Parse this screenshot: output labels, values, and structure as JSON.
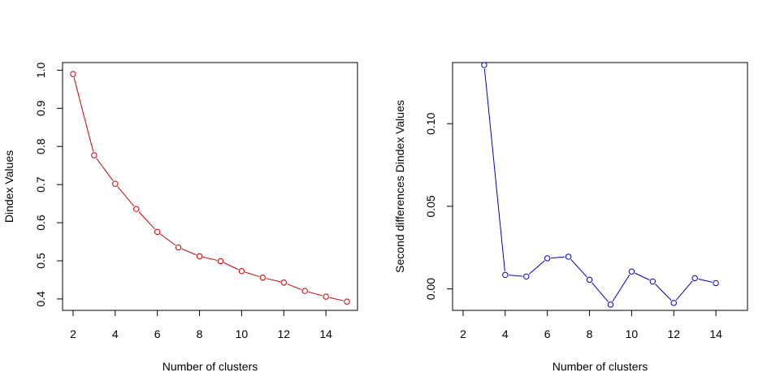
{
  "chart_data": [
    {
      "type": "line",
      "xlabel": "Number of clusters",
      "ylabel": "Dindex Values",
      "xlim": [
        1.5,
        15.5
      ],
      "ylim": [
        0.37,
        1.02
      ],
      "xticks": [
        2,
        4,
        6,
        8,
        10,
        12,
        14
      ],
      "yticks": [
        0.4,
        0.5,
        0.6,
        0.7,
        0.8,
        0.9,
        1.0
      ],
      "ytick_labels": [
        "0.4",
        "0.5",
        "0.6",
        "0.7",
        "0.8",
        "0.9",
        "1.0"
      ],
      "color": "#cc0000",
      "grid": false,
      "x": [
        2,
        3,
        4,
        5,
        6,
        7,
        8,
        9,
        10,
        11,
        12,
        13,
        14,
        15
      ],
      "y": [
        0.99,
        0.777,
        0.702,
        0.636,
        0.576,
        0.535,
        0.512,
        0.499,
        0.473,
        0.456,
        0.443,
        0.421,
        0.406,
        0.393
      ]
    },
    {
      "type": "line",
      "xlabel": "Number of clusters",
      "ylabel": "Second differences Dindex Values",
      "xlim": [
        1.5,
        15.5
      ],
      "ylim": [
        -0.013,
        0.137
      ],
      "xticks": [
        2,
        4,
        6,
        8,
        10,
        12,
        14
      ],
      "yticks": [
        0.0,
        0.05,
        0.1
      ],
      "ytick_labels": [
        "0.00",
        "0.05",
        "0.10"
      ],
      "color": "#0000cc",
      "grid": false,
      "x": [
        3,
        4,
        5,
        6,
        7,
        8,
        9,
        10,
        11,
        12,
        13,
        14
      ],
      "y": [
        0.1355,
        0.0085,
        0.0075,
        0.0185,
        0.0195,
        0.0055,
        -0.0095,
        0.0105,
        0.0045,
        -0.0085,
        0.0065,
        0.0035
      ]
    }
  ]
}
